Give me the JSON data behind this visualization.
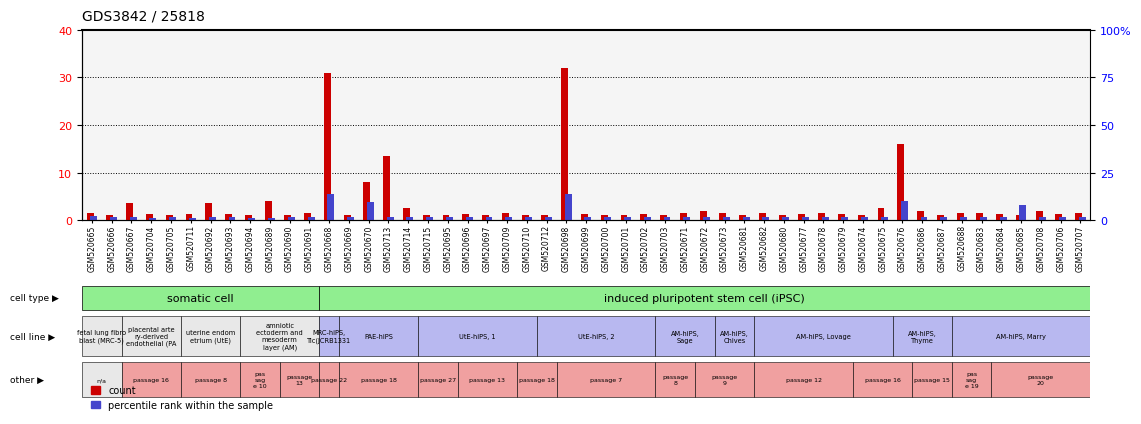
{
  "title": "GDS3842 / 25818",
  "samples": [
    "GSM520665",
    "GSM520666",
    "GSM520667",
    "GSM520704",
    "GSM520705",
    "GSM520711",
    "GSM520692",
    "GSM520693",
    "GSM520694",
    "GSM520689",
    "GSM520690",
    "GSM520691",
    "GSM520668",
    "GSM520669",
    "GSM520670",
    "GSM520713",
    "GSM520714",
    "GSM520715",
    "GSM520695",
    "GSM520696",
    "GSM520697",
    "GSM520709",
    "GSM520710",
    "GSM520712",
    "GSM520698",
    "GSM520699",
    "GSM520700",
    "GSM520701",
    "GSM520702",
    "GSM520703",
    "GSM520671",
    "GSM520672",
    "GSM520673",
    "GSM520681",
    "GSM520682",
    "GSM520680",
    "GSM520677",
    "GSM520678",
    "GSM520679",
    "GSM520674",
    "GSM520675",
    "GSM520676",
    "GSM520686",
    "GSM520687",
    "GSM520688",
    "GSM520683",
    "GSM520684",
    "GSM520685",
    "GSM520708",
    "GSM520706",
    "GSM520707"
  ],
  "count_values": [
    1.5,
    1.0,
    3.5,
    1.2,
    1.0,
    1.2,
    3.5,
    1.2,
    1.0,
    4.0,
    1.0,
    1.5,
    31.0,
    1.0,
    8.0,
    13.5,
    2.5,
    1.0,
    1.0,
    1.2,
    1.0,
    1.5,
    1.0,
    1.0,
    32.0,
    1.2,
    1.0,
    1.0,
    1.2,
    1.0,
    1.5,
    2.0,
    1.5,
    1.0,
    1.5,
    1.0,
    1.2,
    1.5,
    1.2,
    1.0,
    2.5,
    16.0,
    2.0,
    1.0,
    1.5,
    1.5,
    1.2,
    1.0,
    2.0,
    1.2,
    1.5
  ],
  "percentile_values": [
    2.0,
    1.5,
    1.5,
    1.2,
    1.5,
    1.2,
    1.5,
    1.5,
    1.2,
    1.2,
    1.5,
    1.5,
    13.5,
    1.5,
    9.5,
    1.5,
    1.5,
    1.5,
    1.5,
    1.5,
    1.5,
    1.5,
    1.5,
    1.5,
    13.5,
    1.5,
    1.5,
    1.5,
    1.5,
    1.5,
    1.5,
    1.5,
    1.5,
    1.5,
    1.5,
    1.5,
    1.5,
    1.5,
    1.5,
    1.5,
    1.5,
    10.0,
    1.5,
    1.5,
    1.5,
    1.5,
    1.5,
    8.0,
    1.5,
    1.5,
    1.5
  ],
  "cell_type_groups": [
    {
      "label": "somatic cell",
      "start": 0,
      "end": 11,
      "color": "#90EE90"
    },
    {
      "label": "induced pluripotent stem cell (iPSC)",
      "start": 12,
      "end": 50,
      "color": "#90EE90"
    }
  ],
  "cell_line_groups": [
    {
      "label": "fetal lung fibro\nblast (MRC-5)",
      "start": 0,
      "end": 1,
      "color": "#e8e8e8"
    },
    {
      "label": "placental arte\nry-derived\nendothelial (PA",
      "start": 2,
      "end": 4,
      "color": "#e8e8e8"
    },
    {
      "label": "uterine endom\netrium (UtE)",
      "start": 5,
      "end": 7,
      "color": "#e8e8e8"
    },
    {
      "label": "amniotic\nectoderm and\nmesoderm\nlayer (AM)",
      "start": 8,
      "end": 11,
      "color": "#e8e8e8"
    },
    {
      "label": "MRC-hiPS,\nTic(JCRB1331",
      "start": 12,
      "end": 12,
      "color": "#b0b0e8"
    },
    {
      "label": "PAE-hiPS",
      "start": 13,
      "end": 16,
      "color": "#b0b0e8"
    },
    {
      "label": "UtE-hiPS, 1",
      "start": 17,
      "end": 22,
      "color": "#b0b0e8"
    },
    {
      "label": "UtE-hiPS, 2",
      "start": 23,
      "end": 28,
      "color": "#b0b0e8"
    },
    {
      "label": "AM-hiPS,\nSage",
      "start": 29,
      "end": 31,
      "color": "#b0b0e8"
    },
    {
      "label": "AM-hiPS,\nChives",
      "start": 32,
      "end": 33,
      "color": "#b0b0e8"
    },
    {
      "label": "AM-hiPS, Lovage",
      "start": 34,
      "end": 40,
      "color": "#b0b0e8"
    },
    {
      "label": "AM-hiPS,\nThyme",
      "start": 41,
      "end": 43,
      "color": "#b0b0e8"
    },
    {
      "label": "AM-hiPS, Marry",
      "start": 44,
      "end": 50,
      "color": "#b0b0e8"
    }
  ],
  "other_groups": [
    {
      "label": "n/a",
      "start": 0,
      "end": 1,
      "color": "#e8e8e8"
    },
    {
      "label": "passage 16",
      "start": 2,
      "end": 4,
      "color": "#f0a0a0"
    },
    {
      "label": "passage 8",
      "start": 5,
      "end": 7,
      "color": "#f0a0a0"
    },
    {
      "label": "pas\nsag\ne 10",
      "start": 8,
      "end": 9,
      "color": "#f0a0a0"
    },
    {
      "label": "passage\n13",
      "start": 10,
      "end": 11,
      "color": "#f0a0a0"
    },
    {
      "label": "passage 22",
      "start": 12,
      "end": 12,
      "color": "#f0a0a0"
    },
    {
      "label": "passage 18",
      "start": 13,
      "end": 16,
      "color": "#f0a0a0"
    },
    {
      "label": "passage 27",
      "start": 17,
      "end": 18,
      "color": "#f0a0a0"
    },
    {
      "label": "passage 13",
      "start": 19,
      "end": 21,
      "color": "#f0a0a0"
    },
    {
      "label": "passage 18",
      "start": 22,
      "end": 23,
      "color": "#f0a0a0"
    },
    {
      "label": "passage 7",
      "start": 24,
      "end": 28,
      "color": "#f0a0a0"
    },
    {
      "label": "passage\n8",
      "start": 29,
      "end": 30,
      "color": "#f0a0a0"
    },
    {
      "label": "passage\n9",
      "start": 31,
      "end": 33,
      "color": "#f0a0a0"
    },
    {
      "label": "passage 12",
      "start": 34,
      "end": 38,
      "color": "#f0a0a0"
    },
    {
      "label": "passage 16",
      "start": 39,
      "end": 41,
      "color": "#f0a0a0"
    },
    {
      "label": "passage 15",
      "start": 42,
      "end": 43,
      "color": "#f0a0a0"
    },
    {
      "label": "pas\nsag\ne 19",
      "start": 44,
      "end": 45,
      "color": "#f0a0a0"
    },
    {
      "label": "passage\n20",
      "start": 46,
      "end": 50,
      "color": "#f0a0a0"
    }
  ],
  "ylim_left": [
    0,
    40
  ],
  "ylim_right": [
    0,
    100
  ],
  "yticks_left": [
    0,
    10,
    20,
    30,
    40
  ],
  "yticks_right": [
    0,
    25,
    50,
    75,
    100
  ],
  "bar_color_red": "#cc0000",
  "bar_color_blue": "#4444cc",
  "bg_color": "#f5f5f5",
  "plot_bg": "#f5f5f5"
}
